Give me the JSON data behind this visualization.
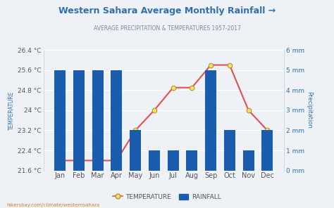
{
  "title": "Western Sahara Average Monthly Rainfall →",
  "subtitle": "AVERAGE PRECIPITATION & TEMPERATURES 1957-2017",
  "months": [
    "Jan",
    "Feb",
    "Mar",
    "Apr",
    "May",
    "Jun",
    "Jul",
    "Aug",
    "Sep",
    "Oct",
    "Nov",
    "Dec"
  ],
  "temperature": [
    22.0,
    22.0,
    22.0,
    22.0,
    23.2,
    24.0,
    24.9,
    24.9,
    25.8,
    25.8,
    24.0,
    23.2
  ],
  "rainfall": [
    5.0,
    5.0,
    5.0,
    5.0,
    2.0,
    1.0,
    1.0,
    1.0,
    5.0,
    2.0,
    1.0,
    2.0
  ],
  "temp_ylim": [
    21.6,
    26.4
  ],
  "temp_yticks": [
    21.6,
    22.4,
    23.2,
    24.0,
    24.8,
    25.6,
    26.4
  ],
  "temp_ytick_labels": [
    "21.6 °C",
    "22.4 °C",
    "23.2 °C",
    "24 °C",
    "24.8 °C",
    "25.6 °C",
    "26.4 °C"
  ],
  "rain_ylim": [
    0,
    6
  ],
  "rain_yticks": [
    0,
    1,
    2,
    3,
    4,
    5,
    6
  ],
  "rain_ytick_labels": [
    "0 mm",
    "1 mm",
    "2 mm",
    "3 mm",
    "4 mm",
    "5 mm",
    "6 mm"
  ],
  "bar_color": "#1A5DAF",
  "line_color": "#e05050",
  "marker_facecolor": "#f5e06a",
  "marker_edgecolor": "#c0902a",
  "bg_color": "#eef2f7",
  "title_color": "#3070b0",
  "subtitle_color": "#7a8a9a",
  "left_axis_color": "#555555",
  "right_axis_color": "#3070b0",
  "ylabel_left": "TEMPERATURE",
  "ylabel_right": "Precipitation",
  "watermark": "hikersbay.com/climate/westernsahara",
  "watermark_color": "#d08030"
}
